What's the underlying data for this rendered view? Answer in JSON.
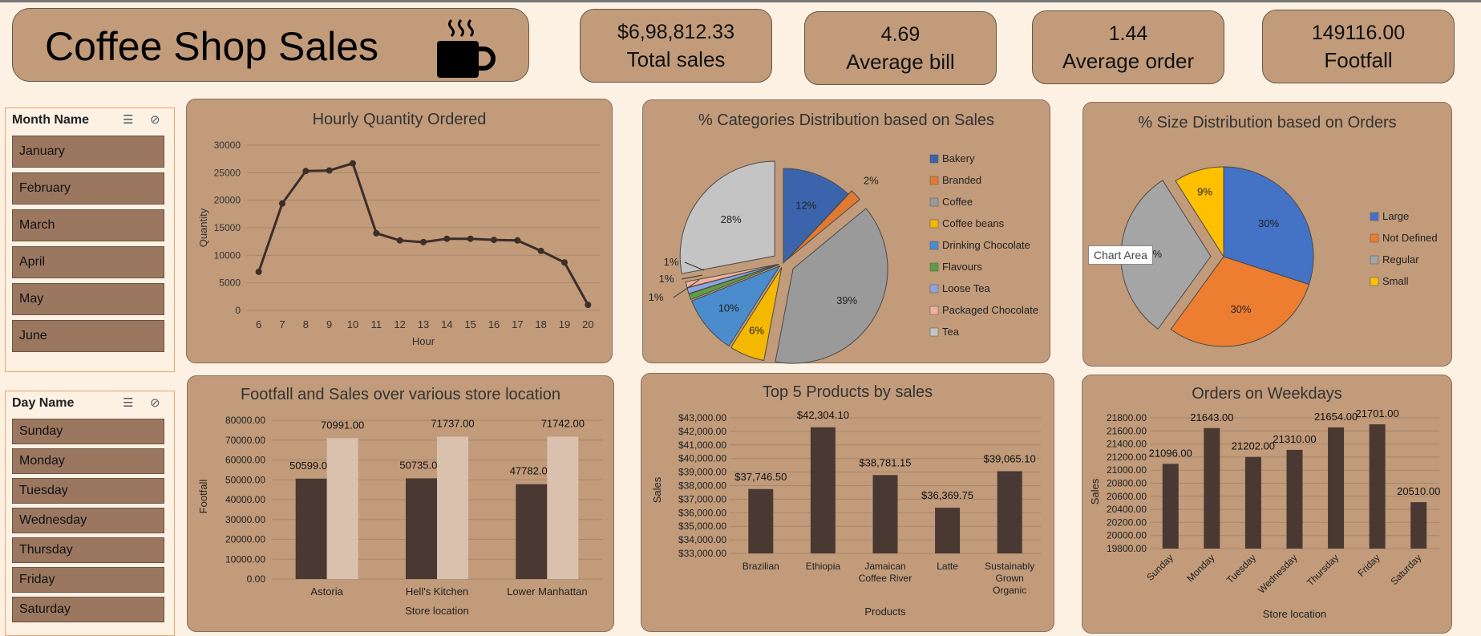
{
  "dashboard_title": "Coffee Shop Sales",
  "kpis": [
    {
      "value": "$6,98,812.33",
      "label": "Total sales"
    },
    {
      "value": "4.69",
      "label": "Average bill"
    },
    {
      "value": "1.44",
      "label": "Average order"
    },
    {
      "value": "149116.00",
      "label": "Footfall"
    }
  ],
  "month_slicer": {
    "title": "Month Name",
    "items": [
      "January",
      "February",
      "March",
      "April",
      "May",
      "June"
    ]
  },
  "day_slicer": {
    "title": "Day Name",
    "items": [
      "Sunday",
      "Monday",
      "Tuesday",
      "Wednesday",
      "Thursday",
      "Friday",
      "Saturday"
    ]
  },
  "tooltip": "Chart Area",
  "colors": {
    "panel": "#c19b7a",
    "bar_dark": "#4a3832",
    "bar_light": "#d9c1ad",
    "line": "#3d2e28",
    "background": "#fdf1e4"
  },
  "chart_data": [
    {
      "type": "line",
      "title": "Hourly Quantity Ordered",
      "xlabel": "Hour",
      "ylabel": "Quantity",
      "x": [
        6,
        7,
        8,
        9,
        10,
        11,
        12,
        13,
        14,
        15,
        16,
        17,
        18,
        19,
        20
      ],
      "values": [
        7000,
        19400,
        25300,
        25400,
        26700,
        14000,
        12700,
        12400,
        13000,
        13000,
        12800,
        12700,
        10800,
        8700,
        1000
      ],
      "yticks": [
        "0",
        "5000",
        "10000",
        "15000",
        "20000",
        "25000",
        "30000"
      ],
      "ylim": [
        0,
        30000
      ]
    },
    {
      "type": "pie",
      "title": "% Categories  Distribution based on Sales",
      "categories": [
        "Bakery",
        "Branded",
        "Coffee",
        "Coffee beans",
        "Drinking Chocolate",
        "Flavours",
        "Loose Tea",
        "Packaged Chocolate",
        "Tea"
      ],
      "values": [
        12,
        2,
        39,
        6,
        10,
        1,
        1,
        1,
        28
      ],
      "labels": [
        "12%",
        "2%",
        "39%",
        "6%",
        "10%",
        "1%",
        "1%",
        "1%",
        "28%"
      ],
      "colors": [
        "#3b64ad",
        "#e07a33",
        "#9a9a9a",
        "#f5b800",
        "#4b8ccc",
        "#5c9e44",
        "#8fa4de",
        "#f1b29a",
        "#c4c4c4"
      ]
    },
    {
      "type": "pie",
      "title": "% Size Distribution based on Orders",
      "categories": [
        "Large",
        "Not Defined",
        "Regular",
        "Small"
      ],
      "values": [
        30,
        30,
        31,
        9
      ],
      "labels": [
        "30%",
        "30%",
        "31%",
        "9%"
      ],
      "colors": [
        "#4472c4",
        "#ed7d31",
        "#a5a5a5",
        "#ffc000"
      ]
    },
    {
      "type": "bar",
      "title": "Footfall and Sales over various store location",
      "xlabel": "Store location",
      "ylabel": "Footfall",
      "categories": [
        "Astoria",
        "Hell's Kitchen",
        "Lower Manhattan"
      ],
      "series": [
        {
          "values": [
            50599,
            50735,
            47782
          ],
          "labels": [
            "50599.00",
            "50735.00",
            "47782.00"
          ]
        },
        {
          "values": [
            70991,
            71737,
            71742
          ],
          "labels": [
            "70991.00",
            "71737.00",
            "71742.00"
          ]
        }
      ],
      "yticks": [
        "0.00",
        "10000.00",
        "20000.00",
        "30000.00",
        "40000.00",
        "50000.00",
        "60000.00",
        "70000.00",
        "80000.00"
      ],
      "ylim": [
        0,
        80000
      ]
    },
    {
      "type": "bar",
      "title": "Top 5 Products  by sales",
      "xlabel": "Products",
      "ylabel": "Sales",
      "categories": [
        "Brazilian",
        "Ethiopia",
        "Jamaican Coffee River",
        "Latte",
        "Sustainably Grown Organic"
      ],
      "values": [
        37746.5,
        42304.1,
        38781.15,
        36369.75,
        39065.1
      ],
      "labels": [
        "$37,746.50",
        "$42,304.10",
        "$38,781.15",
        "$36,369.75",
        "$39,065.10"
      ],
      "yticks": [
        "$33,000.00",
        "$34,000.00",
        "$35,000.00",
        "$36,000.00",
        "$37,000.00",
        "$38,000.00",
        "$39,000.00",
        "$40,000.00",
        "$41,000.00",
        "$42,000.00",
        "$43,000.00"
      ],
      "ylim": [
        33000,
        43000
      ]
    },
    {
      "type": "bar",
      "title": "Orders on Weekdays",
      "xlabel": "Store location",
      "ylabel": "Sales",
      "categories": [
        "Sunday",
        "Monday",
        "Tuesday",
        "Wednesday",
        "Thursday",
        "Friday",
        "Saturday"
      ],
      "values": [
        21096,
        21643,
        21202,
        21310,
        21654,
        21701,
        20510
      ],
      "labels": [
        "21096.00",
        "21643.00",
        "21202.00",
        "21310.00",
        "21654.00",
        "21701.00",
        "20510.00"
      ],
      "yticks": [
        "19800.00",
        "20000.00",
        "20200.00",
        "20400.00",
        "20600.00",
        "20800.00",
        "21000.00",
        "21200.00",
        "21400.00",
        "21600.00",
        "21800.00"
      ],
      "ylim": [
        19800,
        21800
      ]
    }
  ]
}
